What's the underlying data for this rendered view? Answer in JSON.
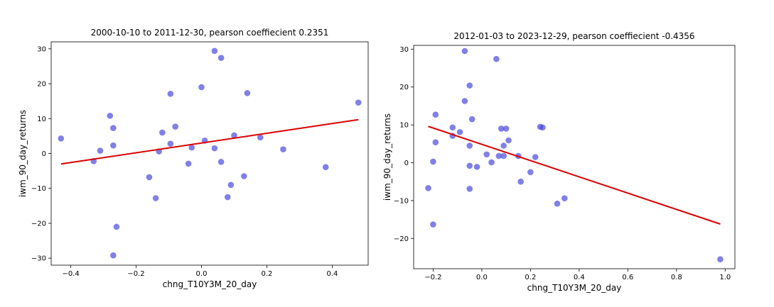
{
  "chart_data": [
    {
      "type": "scatter",
      "title": "2000-10-10 to 2011-12-30, pearson coeffiecient 0.2351",
      "xlabel": "chng_T10Y3M_20_day",
      "ylabel": "iwm_90_day_returns",
      "xlim": [
        -0.46,
        0.51
      ],
      "ylim": [
        -32,
        32
      ],
      "xticks": [
        -0.4,
        -0.2,
        0.0,
        0.2,
        0.4
      ],
      "xtick_labels": [
        "−0.4",
        "−0.2",
        "0.0",
        "0.2",
        "0.4"
      ],
      "yticks": [
        -30,
        -20,
        -10,
        0,
        10,
        20,
        30
      ],
      "ytick_labels": [
        "−30",
        "−20",
        "−10",
        "0",
        "10",
        "20",
        "30"
      ],
      "point_color": "#4444dd",
      "line_color": "#dd0000",
      "points": [
        {
          "x": -0.43,
          "y": 4.3
        },
        {
          "x": -0.33,
          "y": -2.2
        },
        {
          "x": -0.31,
          "y": 0.8
        },
        {
          "x": -0.28,
          "y": 10.8
        },
        {
          "x": -0.27,
          "y": 7.3
        },
        {
          "x": -0.27,
          "y": 2.3
        },
        {
          "x": -0.26,
          "y": -21.0
        },
        {
          "x": -0.27,
          "y": -29.2
        },
        {
          "x": -0.16,
          "y": -6.8
        },
        {
          "x": -0.14,
          "y": -12.8
        },
        {
          "x": -0.13,
          "y": 0.6
        },
        {
          "x": -0.12,
          "y": 6.0
        },
        {
          "x": -0.095,
          "y": 17.1
        },
        {
          "x": -0.095,
          "y": 2.8
        },
        {
          "x": -0.08,
          "y": 7.7
        },
        {
          "x": -0.04,
          "y": -2.9
        },
        {
          "x": -0.03,
          "y": 1.7
        },
        {
          "x": 0.0,
          "y": 19.0
        },
        {
          "x": 0.01,
          "y": 3.7
        },
        {
          "x": 0.04,
          "y": 1.5
        },
        {
          "x": 0.04,
          "y": 29.4
        },
        {
          "x": 0.06,
          "y": 27.4
        },
        {
          "x": 0.06,
          "y": -2.4
        },
        {
          "x": 0.08,
          "y": -12.5
        },
        {
          "x": 0.09,
          "y": -9.0
        },
        {
          "x": 0.1,
          "y": 5.2
        },
        {
          "x": 0.13,
          "y": -6.5
        },
        {
          "x": 0.14,
          "y": 17.3
        },
        {
          "x": 0.18,
          "y": 4.6
        },
        {
          "x": 0.25,
          "y": 1.2
        },
        {
          "x": 0.38,
          "y": -3.9
        },
        {
          "x": 0.48,
          "y": 14.6
        }
      ],
      "fit_line": {
        "x": [
          -0.43,
          0.48
        ],
        "y": [
          -3.0,
          9.7
        ]
      }
    },
    {
      "type": "scatter",
      "title": "2012-01-03 to 2023-12-29, pearson coeffiecient -0.4356",
      "xlabel": "chng_T10Y3M_20_day",
      "ylabel": "iwm_90_day_returns",
      "xlim": [
        -0.28,
        1.04
      ],
      "ylim": [
        -28,
        31
      ],
      "xticks": [
        -0.2,
        0.0,
        0.2,
        0.4,
        0.6,
        0.8,
        1.0
      ],
      "xtick_labels": [
        "−0.2",
        "0.0",
        "0.2",
        "0.4",
        "0.6",
        "0.8",
        "1.0"
      ],
      "yticks": [
        -20,
        -10,
        0,
        10,
        20,
        30
      ],
      "ytick_labels": [
        "−20",
        "−10",
        "0",
        "10",
        "20",
        "30"
      ],
      "point_color": "#4444dd",
      "line_color": "#dd0000",
      "points": [
        {
          "x": -0.22,
          "y": -6.7
        },
        {
          "x": -0.2,
          "y": 0.3
        },
        {
          "x": -0.2,
          "y": -16.3
        },
        {
          "x": -0.19,
          "y": 12.7
        },
        {
          "x": -0.19,
          "y": 5.4
        },
        {
          "x": -0.12,
          "y": 9.3
        },
        {
          "x": -0.12,
          "y": 7.1
        },
        {
          "x": -0.09,
          "y": 8.1
        },
        {
          "x": -0.07,
          "y": 29.5
        },
        {
          "x": -0.07,
          "y": 16.3
        },
        {
          "x": -0.05,
          "y": 20.4
        },
        {
          "x": -0.05,
          "y": 4.5
        },
        {
          "x": -0.05,
          "y": -0.8
        },
        {
          "x": -0.05,
          "y": -6.9
        },
        {
          "x": -0.04,
          "y": 11.5
        },
        {
          "x": -0.02,
          "y": -1.1
        },
        {
          "x": 0.02,
          "y": 2.2
        },
        {
          "x": 0.04,
          "y": 0.1
        },
        {
          "x": 0.06,
          "y": 27.4
        },
        {
          "x": 0.07,
          "y": 1.8
        },
        {
          "x": 0.08,
          "y": 9.0
        },
        {
          "x": 0.09,
          "y": 1.8
        },
        {
          "x": 0.09,
          "y": 4.5
        },
        {
          "x": 0.1,
          "y": 9.0
        },
        {
          "x": 0.11,
          "y": 5.9
        },
        {
          "x": 0.15,
          "y": 1.8
        },
        {
          "x": 0.16,
          "y": -5.0
        },
        {
          "x": 0.2,
          "y": -2.5
        },
        {
          "x": 0.22,
          "y": 1.5
        },
        {
          "x": 0.24,
          "y": 9.5
        },
        {
          "x": 0.25,
          "y": 9.3
        },
        {
          "x": 0.31,
          "y": -10.8
        },
        {
          "x": 0.34,
          "y": -9.4
        },
        {
          "x": 0.98,
          "y": -25.5
        }
      ],
      "fit_line": {
        "x": [
          -0.22,
          0.98
        ],
        "y": [
          9.6,
          -16.2
        ]
      }
    }
  ]
}
